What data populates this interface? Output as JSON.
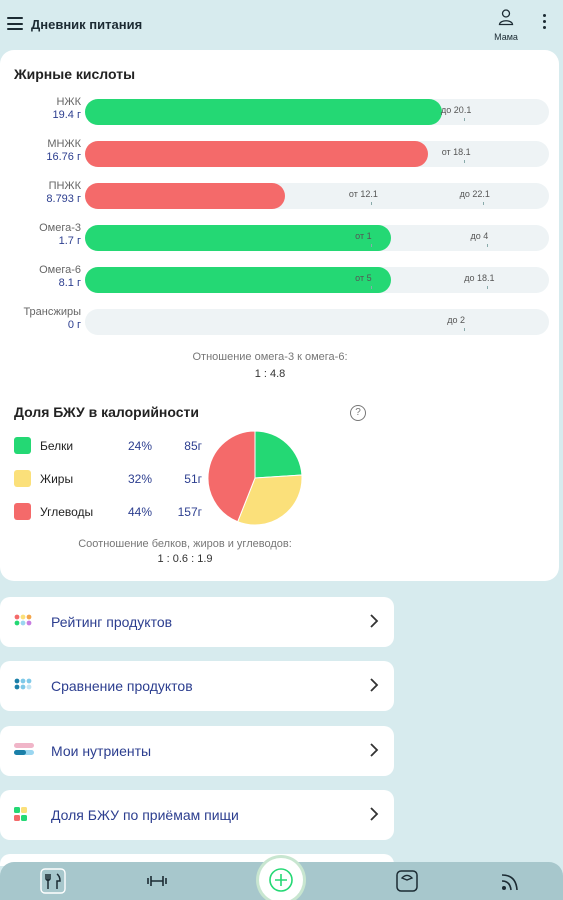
{
  "header": {
    "title": "Дневник питания",
    "profile_label": "Мама"
  },
  "fatty_acids": {
    "title": "Жирные кислоты",
    "rows": [
      {
        "name": "НЖК",
        "value": "19.4 г",
        "fill": 0.77,
        "color": "#24d874",
        "marks": [
          {
            "label": "до 20.1",
            "pos": 0.8
          }
        ]
      },
      {
        "name": "МНЖК",
        "value": "16.76 г",
        "fill": 0.74,
        "color": "#f46a6a",
        "marks": [
          {
            "label": "от 18.1",
            "pos": 0.8
          }
        ]
      },
      {
        "name": "ПНЖК",
        "value": "8.793 г",
        "fill": 0.43,
        "color": "#f46a6a",
        "marks": [
          {
            "label": "от 12.1",
            "pos": 0.6
          },
          {
            "label": "до 22.1",
            "pos": 0.84
          }
        ]
      },
      {
        "name": "Омега-3",
        "value": "1.7 г",
        "fill": 0.66,
        "color": "#24d874",
        "marks": [
          {
            "label": "от 1",
            "pos": 0.6
          },
          {
            "label": "до 4",
            "pos": 0.85
          }
        ]
      },
      {
        "name": "Омега-6",
        "value": "8.1 г",
        "fill": 0.66,
        "color": "#24d874",
        "marks": [
          {
            "label": "от 5",
            "pos": 0.6
          },
          {
            "label": "до 18.1",
            "pos": 0.85
          }
        ]
      },
      {
        "name": "Трансжиры",
        "value": "0 г",
        "fill": 0,
        "color": "#24d874",
        "marks": [
          {
            "label": "до 2",
            "pos": 0.8
          }
        ]
      }
    ],
    "ratio_caption": "Отношение омега-3 к омега-6:",
    "ratio_value": "1 : 4.8"
  },
  "macros": {
    "title": "Доля БЖУ в калорийности",
    "items": [
      {
        "name": "Белки",
        "pct": "24%",
        "grams": "85г",
        "color": "#24d874",
        "share": 0.24
      },
      {
        "name": "Жиры",
        "pct": "32%",
        "grams": "51г",
        "color": "#fbe07a",
        "share": 0.32
      },
      {
        "name": "Углеводы",
        "pct": "44%",
        "grams": "157г",
        "color": "#f46a6a",
        "share": 0.44
      }
    ],
    "ratio_caption": "Соотношение белков, жиров и углеводов:",
    "ratio_value": "1 : 0.6 : 1.9"
  },
  "menu": [
    {
      "label": "Рейтинг продуктов",
      "icon": "rating-icon"
    },
    {
      "label": "Сравнение продуктов",
      "icon": "compare-icon"
    },
    {
      "label": "Мои нутриенты",
      "icon": "nutrients-icon"
    },
    {
      "label": "Доля БЖУ по приёмам пищи",
      "icon": "meals-icon"
    }
  ],
  "nav": [
    "food-icon",
    "workout-icon",
    "add-icon",
    "scale-icon",
    "feed-icon"
  ]
}
